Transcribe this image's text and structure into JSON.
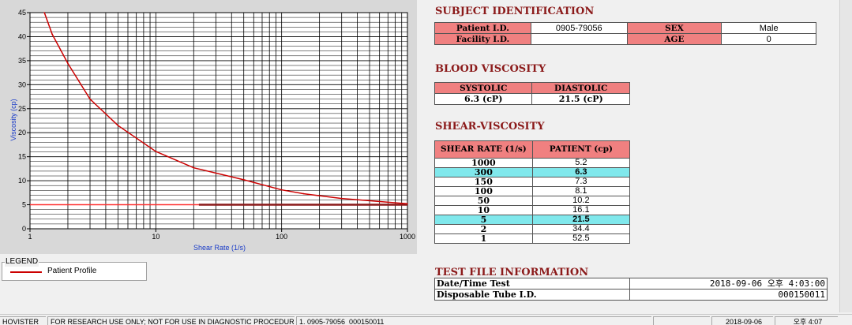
{
  "chart_data": {
    "type": "line",
    "xscale": "log",
    "xlim": [
      1,
      1000
    ],
    "ylim": [
      0,
      45
    ],
    "xlabel": "Shear Rate (1/s)",
    "ylabel": "Viscosity (cp)",
    "x_ticks": [
      "1",
      "10",
      "100",
      "1000"
    ],
    "y_ticks": [
      "0",
      "5",
      "10",
      "15",
      "20",
      "25",
      "30",
      "35",
      "40",
      "45"
    ],
    "grid": true,
    "series": [
      {
        "name": "Patient Profile",
        "color": "#cc0000",
        "x": [
          1.3,
          1.5,
          2,
          3,
          5,
          10,
          20,
          50,
          100,
          150,
          300,
          1000
        ],
        "y": [
          45,
          40.5,
          34.4,
          27,
          21.5,
          16.1,
          12.7,
          10.2,
          8.1,
          7.3,
          6.3,
          5.2
        ]
      }
    ],
    "reference_lines": [
      {
        "color": "#ff3030",
        "y": 5.0,
        "x_from": 1,
        "x_to": 1000
      },
      {
        "color": "#8b1a1a",
        "y": 5.0,
        "x_from": 22,
        "x_to": 1000
      }
    ]
  },
  "legend": {
    "title": "LEGEND",
    "item": "Patient Profile"
  },
  "subject": {
    "title": "SUBJECT IDENTIFICATION",
    "patient_id_label": "Patient I.D.",
    "patient_id": "0905-79056",
    "sex_label": "SEX",
    "sex": "Male",
    "facility_label": "Facility I.D.",
    "facility": "",
    "age_label": "AGE",
    "age": "0"
  },
  "blood_viscosity": {
    "title": "BLOOD VISCOSITY",
    "systolic_label": "SYSTOLIC",
    "diastolic_label": "DIASTOLIC",
    "systolic": "6.3 (cP)",
    "diastolic": "21.5 (cP)"
  },
  "shear_viscosity": {
    "title": "SHEAR-VISCOSITY",
    "col_rate": "SHEAR RATE (1/s)",
    "col_patient": "PATIENT (cp)",
    "rows": [
      {
        "rate": "1000",
        "value": "5.2"
      },
      {
        "rate": "300",
        "value": "6.3"
      },
      {
        "rate": "150",
        "value": "7.3"
      },
      {
        "rate": "100",
        "value": "8.1"
      },
      {
        "rate": "50",
        "value": "10.2"
      },
      {
        "rate": "10",
        "value": "16.1"
      },
      {
        "rate": "5",
        "value": "21.5"
      },
      {
        "rate": "2",
        "value": "34.4"
      },
      {
        "rate": "1",
        "value": "52.5"
      }
    ]
  },
  "test_file": {
    "title": "TEST FILE INFORMATION",
    "datetime_label": "Date/Time Test",
    "datetime": "2018-09-06  오후 4:03:00",
    "tube_label": "Disposable Tube I.D.",
    "tube": "000150011"
  },
  "status_bar": {
    "app": "HOVISTER",
    "notice": "FOR RESEARCH USE ONLY; NOT FOR USE IN DIAGNOSTIC PROCEDURES",
    "file": "1. 0905-79056_000150011",
    "date": "2018-09-06",
    "time": "오후 4:07"
  },
  "colors": {
    "header_bg": "#f08080",
    "highlight_bg": "#80e8ec",
    "section_title": "#8b1a1a",
    "curve": "#cc0000"
  }
}
